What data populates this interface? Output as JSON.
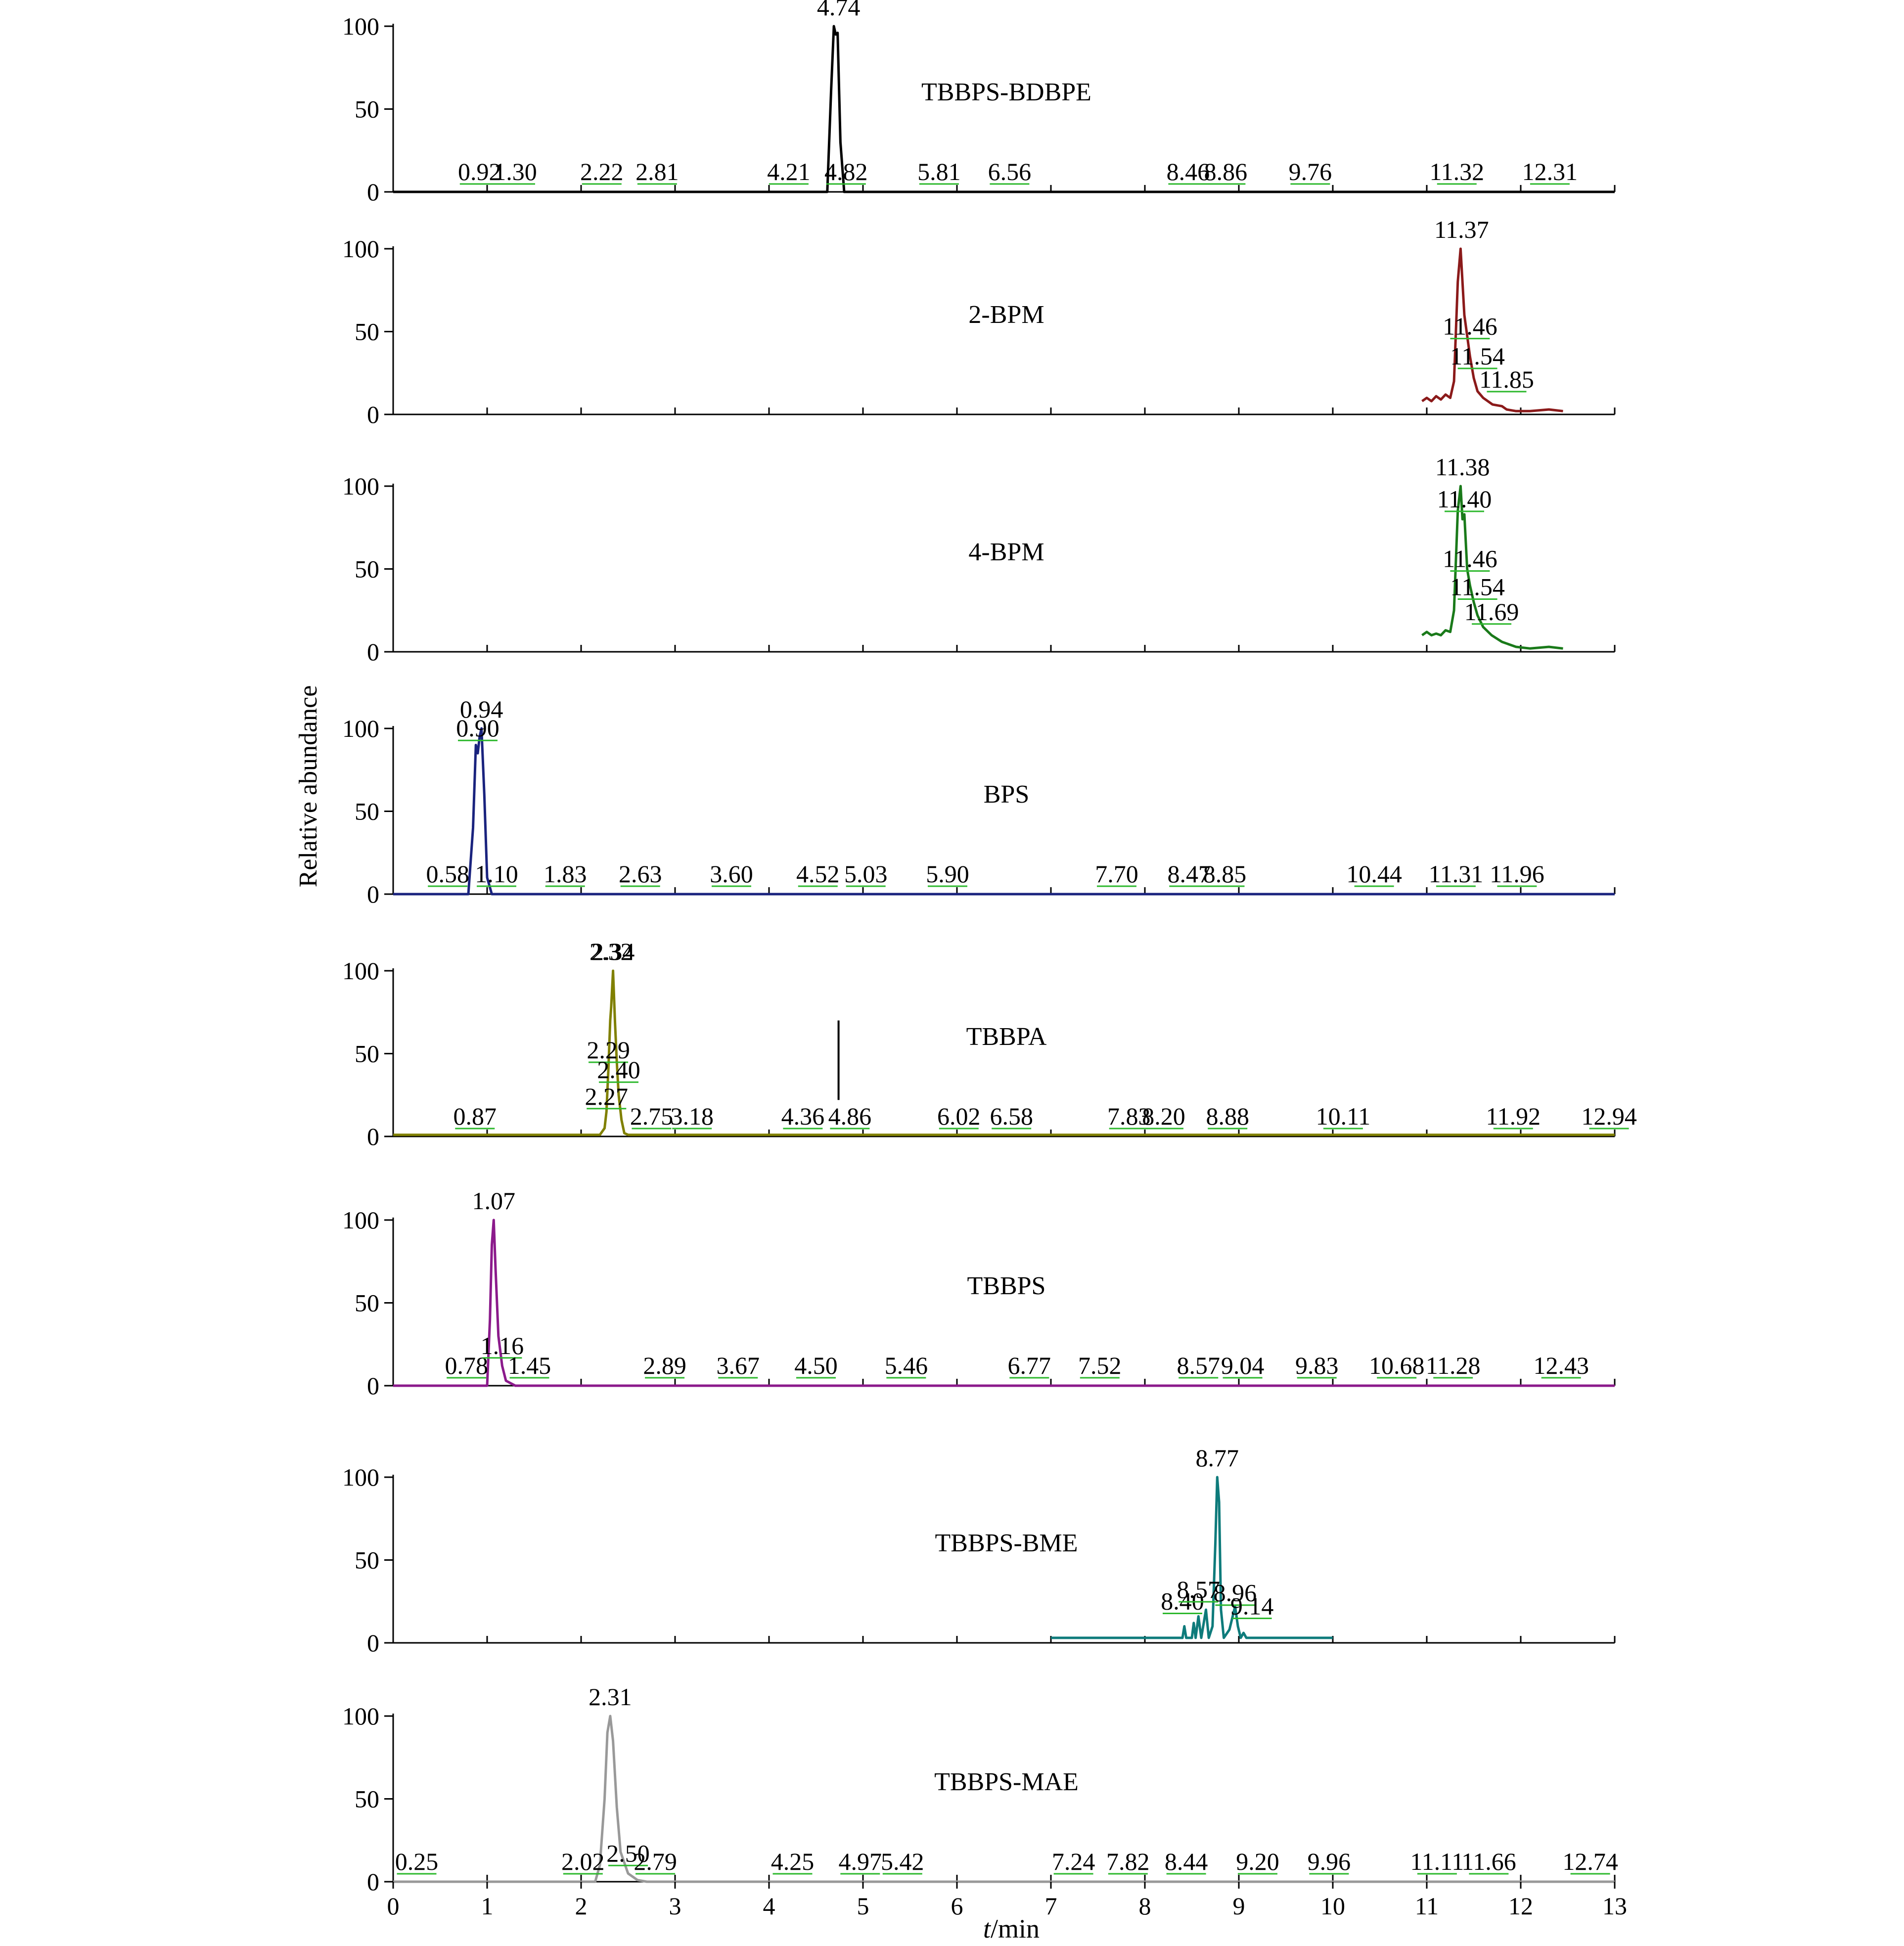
{
  "chart_data": {
    "type": "line",
    "ylabel": "Relative abundance",
    "xlabel": "t/min",
    "xlim": [
      0,
      13
    ],
    "x_ticks": [
      "0",
      "1",
      "2",
      "3",
      "4",
      "5",
      "6",
      "7",
      "8",
      "9",
      "10",
      "11",
      "12",
      "13"
    ],
    "ylim": [
      0,
      100
    ],
    "y_ticks": [
      "0",
      "50",
      "100"
    ],
    "grid": false,
    "legend": "none",
    "panels": [
      {
        "name": "TBBPS-BDBPE",
        "color": "#000000",
        "trace": [
          [
            0,
            0
          ],
          [
            4.62,
            0
          ],
          [
            4.66,
            60
          ],
          [
            4.69,
            100
          ],
          [
            4.71,
            95
          ],
          [
            4.73,
            96
          ],
          [
            4.76,
            30
          ],
          [
            4.8,
            0
          ],
          [
            13,
            0
          ]
        ],
        "peaks": [
          {
            "label": "0.92",
            "t": 0.92,
            "y": 0
          },
          {
            "label": "1.30",
            "t": 1.3,
            "y": 0
          },
          {
            "label": "2.22",
            "t": 2.22,
            "y": 0
          },
          {
            "label": "2.81",
            "t": 2.81,
            "y": 0
          },
          {
            "label": "4.21",
            "t": 4.21,
            "y": 0
          },
          {
            "label": "4.74",
            "t": 4.74,
            "y": 100
          },
          {
            "label": "4.82",
            "t": 4.82,
            "y": 0
          },
          {
            "label": "5.81",
            "t": 5.81,
            "y": 0
          },
          {
            "label": "6.56",
            "t": 6.56,
            "y": 0
          },
          {
            "label": "8.46",
            "t": 8.46,
            "y": 0
          },
          {
            "label": "8.86",
            "t": 8.86,
            "y": 0
          },
          {
            "label": "9.76",
            "t": 9.76,
            "y": 0
          },
          {
            "label": "11.32",
            "t": 11.32,
            "y": 0
          },
          {
            "label": "12.31",
            "t": 12.31,
            "y": 0
          }
        ]
      },
      {
        "name": "2-BPM",
        "color": "#8b1a1a",
        "trace": [
          [
            10.95,
            8
          ],
          [
            11.0,
            10
          ],
          [
            11.05,
            8
          ],
          [
            11.1,
            11
          ],
          [
            11.15,
            9
          ],
          [
            11.2,
            12
          ],
          [
            11.25,
            10
          ],
          [
            11.29,
            20
          ],
          [
            11.33,
            80
          ],
          [
            11.36,
            100
          ],
          [
            11.4,
            60
          ],
          [
            11.46,
            35
          ],
          [
            11.5,
            22
          ],
          [
            11.54,
            14
          ],
          [
            11.6,
            10
          ],
          [
            11.7,
            6
          ],
          [
            11.8,
            5
          ],
          [
            11.85,
            3
          ],
          [
            11.95,
            2
          ],
          [
            12.1,
            2
          ],
          [
            12.3,
            3
          ],
          [
            12.45,
            2
          ]
        ],
        "peaks": [
          {
            "label": "11.37",
            "t": 11.37,
            "y": 100
          },
          {
            "label": "11.46",
            "t": 11.46,
            "y": 41
          },
          {
            "label": "11.54",
            "t": 11.54,
            "y": 23
          },
          {
            "label": "11.85",
            "t": 11.85,
            "y": 9
          }
        ]
      },
      {
        "name": "4-BPM",
        "color": "#1a7a1a",
        "trace": [
          [
            10.95,
            10
          ],
          [
            11.0,
            12
          ],
          [
            11.05,
            10
          ],
          [
            11.1,
            11
          ],
          [
            11.15,
            10
          ],
          [
            11.2,
            13
          ],
          [
            11.25,
            12
          ],
          [
            11.29,
            25
          ],
          [
            11.33,
            85
          ],
          [
            11.36,
            100
          ],
          [
            11.38,
            80
          ],
          [
            11.4,
            83
          ],
          [
            11.43,
            50
          ],
          [
            11.46,
            40
          ],
          [
            11.5,
            30
          ],
          [
            11.54,
            22
          ],
          [
            11.6,
            15
          ],
          [
            11.69,
            10
          ],
          [
            11.8,
            6
          ],
          [
            11.95,
            3
          ],
          [
            12.1,
            2
          ],
          [
            12.3,
            3
          ],
          [
            12.45,
            2
          ]
        ],
        "peaks": [
          {
            "label": "11.38",
            "t": 11.38,
            "y": 100
          },
          {
            "label": "11.40",
            "t": 11.4,
            "y": 80
          },
          {
            "label": "11.46",
            "t": 11.46,
            "y": 44
          },
          {
            "label": "11.54",
            "t": 11.54,
            "y": 27
          },
          {
            "label": "11.69",
            "t": 11.69,
            "y": 12
          }
        ]
      },
      {
        "name": "BPS",
        "color": "#1a237e",
        "trace": [
          [
            0,
            0
          ],
          [
            0.8,
            0
          ],
          [
            0.85,
            40
          ],
          [
            0.88,
            90
          ],
          [
            0.9,
            85
          ],
          [
            0.92,
            95
          ],
          [
            0.94,
            100
          ],
          [
            0.97,
            60
          ],
          [
            1.0,
            10
          ],
          [
            1.05,
            0
          ],
          [
            13,
            0
          ]
        ],
        "peaks": [
          {
            "label": "0.58",
            "t": 0.58,
            "y": 0
          },
          {
            "label": "0.90",
            "t": 0.9,
            "y": 88
          },
          {
            "label": "0.94",
            "t": 0.94,
            "y": 100
          },
          {
            "label": "1.10",
            "t": 1.1,
            "y": 0
          },
          {
            "label": "1.83",
            "t": 1.83,
            "y": 0
          },
          {
            "label": "2.63",
            "t": 2.63,
            "y": 0
          },
          {
            "label": "3.60",
            "t": 3.6,
            "y": 0
          },
          {
            "label": "4.52",
            "t": 4.52,
            "y": 0
          },
          {
            "label": "5.03",
            "t": 5.03,
            "y": 0
          },
          {
            "label": "5.90",
            "t": 5.9,
            "y": 0
          },
          {
            "label": "7.70",
            "t": 7.7,
            "y": 0
          },
          {
            "label": "8.47",
            "t": 8.47,
            "y": 0
          },
          {
            "label": "8.85",
            "t": 8.85,
            "y": 0
          },
          {
            "label": "10.44",
            "t": 10.44,
            "y": 0
          },
          {
            "label": "11.31",
            "t": 11.31,
            "y": 0
          },
          {
            "label": "11.96",
            "t": 11.96,
            "y": 0
          }
        ]
      },
      {
        "name": "TBBPA",
        "color": "#808000",
        "trace": [
          [
            0,
            1
          ],
          [
            2.2,
            1
          ],
          [
            2.25,
            5
          ],
          [
            2.27,
            15
          ],
          [
            2.29,
            40
          ],
          [
            2.31,
            70
          ],
          [
            2.32,
            78
          ],
          [
            2.34,
            100
          ],
          [
            2.36,
            70
          ],
          [
            2.38,
            45
          ],
          [
            2.4,
            25
          ],
          [
            2.43,
            10
          ],
          [
            2.46,
            2
          ],
          [
            2.5,
            1
          ],
          [
            13,
            1
          ]
        ],
        "peaks": [
          {
            "label": "0.87",
            "t": 0.87,
            "y": 0
          },
          {
            "label": "2.27",
            "t": 2.27,
            "y": 12
          },
          {
            "label": "2.29",
            "t": 2.29,
            "y": 40
          },
          {
            "label": "2.32",
            "t": 2.32,
            "y": 100
          },
          {
            "label": "2.34",
            "t": 2.34,
            "y": 100
          },
          {
            "label": "2.40",
            "t": 2.4,
            "y": 28
          },
          {
            "label": "2.75",
            "t": 2.75,
            "y": 0
          },
          {
            "label": "3.18",
            "t": 3.18,
            "y": 0
          },
          {
            "label": "4.36",
            "t": 4.36,
            "y": 0
          },
          {
            "label": "4.86",
            "t": 4.86,
            "y": 0
          },
          {
            "label": "6.02",
            "t": 6.02,
            "y": 0
          },
          {
            "label": "6.58",
            "t": 6.58,
            "y": 0
          },
          {
            "label": "7.83",
            "t": 7.83,
            "y": 0
          },
          {
            "label": "8.20",
            "t": 8.2,
            "y": 0
          },
          {
            "label": "8.88",
            "t": 8.88,
            "y": 0
          },
          {
            "label": "10.11",
            "t": 10.11,
            "y": 0
          },
          {
            "label": "11.92",
            "t": 11.92,
            "y": 0
          },
          {
            "label": "12.94",
            "t": 12.94,
            "y": 0
          }
        ],
        "marker_t": 4.74
      },
      {
        "name": "TBBPS",
        "color": "#8b1a8b",
        "trace": [
          [
            0,
            0
          ],
          [
            1.0,
            0
          ],
          [
            1.03,
            40
          ],
          [
            1.05,
            85
          ],
          [
            1.07,
            100
          ],
          [
            1.09,
            70
          ],
          [
            1.12,
            30
          ],
          [
            1.16,
            12
          ],
          [
            1.2,
            3
          ],
          [
            1.3,
            0
          ],
          [
            13,
            0
          ]
        ],
        "peaks": [
          {
            "label": "0.78",
            "t": 0.78,
            "y": 0
          },
          {
            "label": "1.07",
            "t": 1.07,
            "y": 100
          },
          {
            "label": "1.16",
            "t": 1.16,
            "y": 12
          },
          {
            "label": "1.45",
            "t": 1.45,
            "y": 0
          },
          {
            "label": "2.89",
            "t": 2.89,
            "y": 0
          },
          {
            "label": "3.67",
            "t": 3.67,
            "y": 0
          },
          {
            "label": "4.50",
            "t": 4.5,
            "y": 0
          },
          {
            "label": "5.46",
            "t": 5.46,
            "y": 0
          },
          {
            "label": "6.77",
            "t": 6.77,
            "y": 0
          },
          {
            "label": "7.52",
            "t": 7.52,
            "y": 0
          },
          {
            "label": "8.57",
            "t": 8.57,
            "y": 0
          },
          {
            "label": "9.04",
            "t": 9.04,
            "y": 0
          },
          {
            "label": "9.83",
            "t": 9.83,
            "y": 0
          },
          {
            "label": "10.68",
            "t": 10.68,
            "y": 0
          },
          {
            "label": "11.28",
            "t": 11.28,
            "y": 0
          },
          {
            "label": "12.43",
            "t": 12.43,
            "y": 0
          }
        ]
      },
      {
        "name": "TBBPS-BME",
        "color": "#0e7b7b",
        "trace": [
          [
            7.0,
            3
          ],
          [
            8.4,
            3
          ],
          [
            8.42,
            10
          ],
          [
            8.44,
            3
          ],
          [
            8.5,
            3
          ],
          [
            8.52,
            12
          ],
          [
            8.54,
            3
          ],
          [
            8.57,
            16
          ],
          [
            8.6,
            3
          ],
          [
            8.65,
            20
          ],
          [
            8.68,
            3
          ],
          [
            8.72,
            10
          ],
          [
            8.75,
            60
          ],
          [
            8.77,
            100
          ],
          [
            8.79,
            85
          ],
          [
            8.81,
            20
          ],
          [
            8.84,
            3
          ],
          [
            8.9,
            8
          ],
          [
            8.93,
            15
          ],
          [
            8.96,
            22
          ],
          [
            8.99,
            10
          ],
          [
            9.02,
            3
          ],
          [
            9.05,
            6
          ],
          [
            9.08,
            3
          ],
          [
            10.0,
            3
          ]
        ],
        "peaks": [
          {
            "label": "8.40",
            "t": 8.4,
            "y": 13
          },
          {
            "label": "8.57",
            "t": 8.57,
            "y": 20
          },
          {
            "label": "8.77",
            "t": 8.77,
            "y": 100
          },
          {
            "label": "8.96",
            "t": 8.96,
            "y": 18
          },
          {
            "label": "9.14",
            "t": 9.14,
            "y": 10
          }
        ]
      },
      {
        "name": "TBBPS-MAE",
        "color": "#999999",
        "trace": [
          [
            0,
            0
          ],
          [
            2.15,
            0
          ],
          [
            2.2,
            10
          ],
          [
            2.25,
            50
          ],
          [
            2.28,
            90
          ],
          [
            2.31,
            100
          ],
          [
            2.34,
            85
          ],
          [
            2.38,
            45
          ],
          [
            2.42,
            18
          ],
          [
            2.5,
            5
          ],
          [
            2.6,
            1
          ],
          [
            2.7,
            0
          ],
          [
            13,
            0
          ]
        ],
        "peaks": [
          {
            "label": "0.25",
            "t": 0.25,
            "y": 0
          },
          {
            "label": "2.02",
            "t": 2.02,
            "y": 0
          },
          {
            "label": "2.31",
            "t": 2.31,
            "y": 100
          },
          {
            "label": "2.50",
            "t": 2.5,
            "y": 5
          },
          {
            "label": "2.79",
            "t": 2.79,
            "y": 0
          },
          {
            "label": "4.25",
            "t": 4.25,
            "y": 0
          },
          {
            "label": "4.97",
            "t": 4.97,
            "y": 0
          },
          {
            "label": "5.42",
            "t": 5.42,
            "y": 0
          },
          {
            "label": "7.24",
            "t": 7.24,
            "y": 0
          },
          {
            "label": "7.82",
            "t": 7.82,
            "y": 0
          },
          {
            "label": "8.44",
            "t": 8.44,
            "y": 0
          },
          {
            "label": "9.20",
            "t": 9.2,
            "y": 0
          },
          {
            "label": "9.96",
            "t": 9.96,
            "y": 0
          },
          {
            "label": "11.11",
            "t": 11.11,
            "y": 0
          },
          {
            "label": "11.66",
            "t": 11.66,
            "y": 0
          },
          {
            "label": "12.74",
            "t": 12.74,
            "y": 0
          }
        ]
      }
    ]
  }
}
